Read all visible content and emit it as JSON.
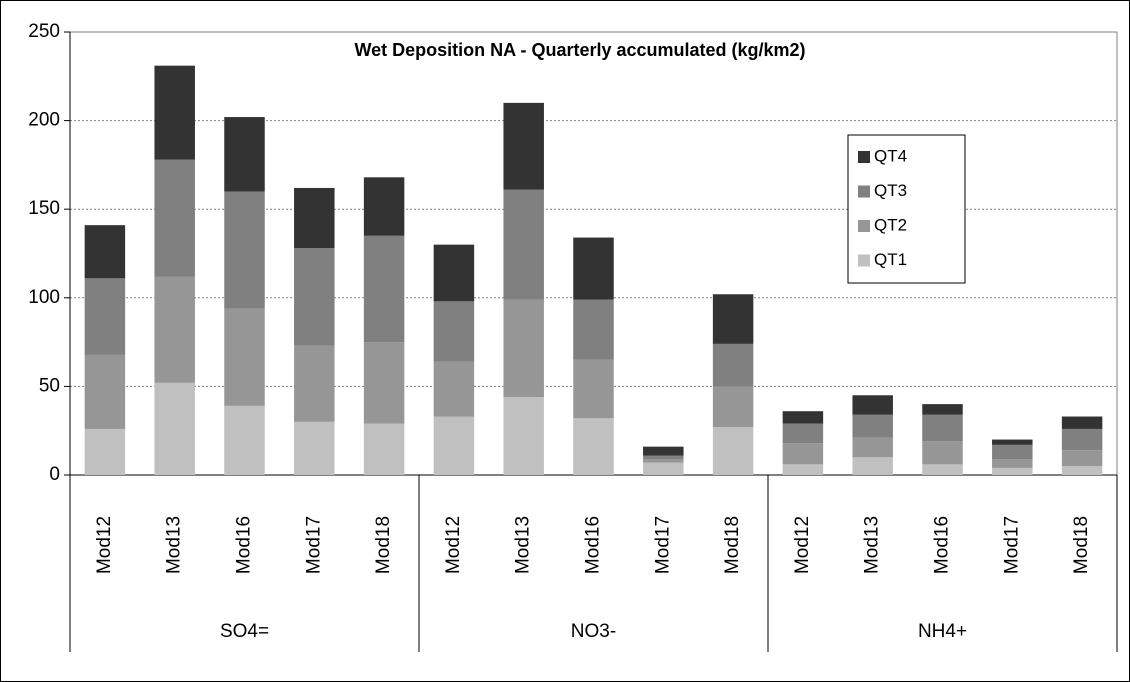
{
  "chart_data": {
    "type": "stacked-bar",
    "title": "Wet Deposition NA - Quarterly accumulated (kg/km2)",
    "groups": [
      {
        "name": "SO4=",
        "categories": [
          "Mod12",
          "Mod13",
          "Mod16",
          "Mod17",
          "Mod18"
        ]
      },
      {
        "name": "NO3-",
        "categories": [
          "Mod12",
          "Mod13",
          "Mod16",
          "Mod17",
          "Mod18"
        ]
      },
      {
        "name": "NH4+",
        "categories": [
          "Mod12",
          "Mod13",
          "Mod16",
          "Mod17",
          "Mod18"
        ]
      }
    ],
    "series": [
      {
        "name": "QT1",
        "color": "#c0c0c0",
        "values": [
          26,
          52,
          39,
          30,
          29,
          33,
          44,
          32,
          7,
          27,
          6,
          10,
          6,
          4,
          5
        ]
      },
      {
        "name": "QT2",
        "color": "#969696",
        "values": [
          42,
          60,
          55,
          43,
          46,
          31,
          55,
          33,
          2,
          23,
          12,
          11,
          13,
          5,
          9
        ]
      },
      {
        "name": "QT3",
        "color": "#808080",
        "values": [
          43,
          66,
          66,
          55,
          60,
          34,
          62,
          34,
          2,
          24,
          11,
          13,
          15,
          8,
          12
        ]
      },
      {
        "name": "QT4",
        "color": "#333333",
        "values": [
          30,
          53,
          42,
          34,
          33,
          32,
          49,
          35,
          5,
          28,
          7,
          11,
          6,
          3,
          7
        ]
      }
    ],
    "ylim": [
      0,
      250
    ],
    "yticks": [
      0,
      50,
      100,
      150,
      200,
      250
    ],
    "grid": true,
    "legend": "right"
  }
}
